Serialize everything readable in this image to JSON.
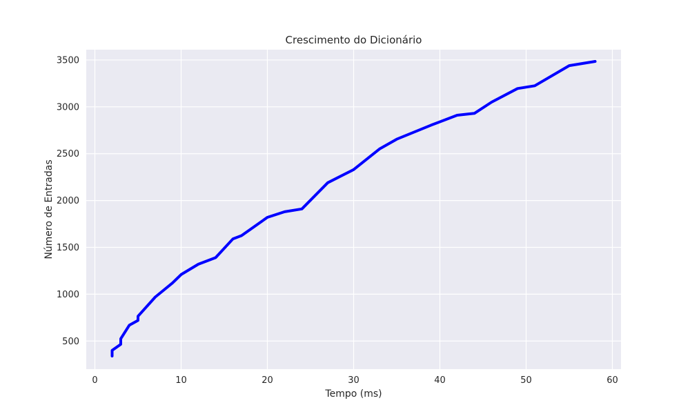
{
  "chart_data": {
    "type": "line",
    "title": "Crescimento do Dicionário",
    "xlabel": "Tempo (ms)",
    "ylabel": "Número de Entradas",
    "xlim": [
      -1,
      61
    ],
    "ylim": [
      200,
      3610
    ],
    "xticks": [
      0,
      10,
      20,
      30,
      40,
      50,
      60
    ],
    "yticks": [
      500,
      1000,
      1500,
      2000,
      2500,
      3000,
      3500
    ],
    "grid": true,
    "legend": "none",
    "colors": {
      "background": "#eaeaf2",
      "grid": "#ffffff",
      "line": "#0000ff"
    },
    "series": [
      {
        "x": [
          2,
          2,
          2,
          3,
          3,
          4,
          5,
          5,
          7,
          9,
          10,
          12,
          14,
          16,
          17,
          20,
          22,
          24,
          27,
          30,
          33,
          35,
          39,
          42,
          44,
          46,
          49,
          51,
          55,
          58
        ],
        "y": [
          340,
          360,
          400,
          465,
          525,
          670,
          720,
          765,
          970,
          1120,
          1210,
          1320,
          1390,
          1590,
          1625,
          1820,
          1880,
          1910,
          2190,
          2330,
          2550,
          2655,
          2805,
          2910,
          2930,
          3050,
          3195,
          3225,
          3440,
          3485
        ]
      }
    ]
  }
}
